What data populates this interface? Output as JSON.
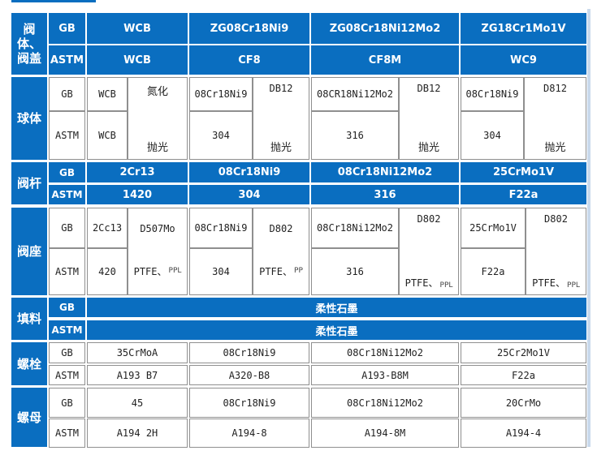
{
  "labels": {
    "gb": "GB",
    "astm": "ASTM",
    "polish": "抛光",
    "nitride": "氮化",
    "ptfe": "PTFE、",
    "ppl": "PPL",
    "pp": "PP"
  },
  "categories": {
    "body": "阀体、阀盖",
    "ball": "球体",
    "stem": "阀杆",
    "seat": "阀座",
    "packing": "填料",
    "bolt": "螺栓",
    "nut": "螺母"
  },
  "body": {
    "gb": [
      "WCB",
      "ZG08Cr18Ni9",
      "ZG08Cr18Ni12Mo2",
      "ZG18Cr1Mo1V"
    ],
    "astm": [
      "WCB",
      "CF8",
      "CF8M",
      "WC9"
    ]
  },
  "ball": {
    "gb": [
      "WCB",
      "08Cr18Ni9",
      "08CR18Ni12Mo2",
      "08Cr18Ni9"
    ],
    "astm": [
      "WCB",
      "304",
      "316",
      "304"
    ],
    "treatment": [
      "DB12",
      "DB12",
      "D812"
    ]
  },
  "stem": {
    "gb": [
      "2Cr13",
      "08Cr18Ni9",
      "08Cr18Ni12Mo2",
      "25CrMo1V"
    ],
    "astm": [
      "1420",
      "304",
      "316",
      "F22a"
    ]
  },
  "seat": {
    "gb": [
      "2Cc13",
      "08Cr18Ni9",
      "08Cr18Ni12Mo2",
      "25CrMo1V"
    ],
    "astm": [
      "420",
      "304",
      "316",
      "F22a"
    ],
    "seal": [
      "D507Mo",
      "D802",
      "D802",
      "D802"
    ]
  },
  "packing": {
    "gb": "柔性石墨",
    "astm": "柔性石墨"
  },
  "bolt": {
    "gb": [
      "35CrMoA",
      "08Cr18Ni9",
      "08Cr18Ni12Mo2",
      "25Cr2Mo1V"
    ],
    "astm": [
      "A193 B7",
      "A320-B8",
      "A193-B8M",
      "F22a"
    ]
  },
  "nut": {
    "gb": [
      "45",
      "08Cr18Ni9",
      "08Cr18Ni12Mo2",
      "20CrMo"
    ],
    "astm": [
      "A194 2H",
      "A194-8",
      "A194-8M",
      "A194-4"
    ]
  }
}
